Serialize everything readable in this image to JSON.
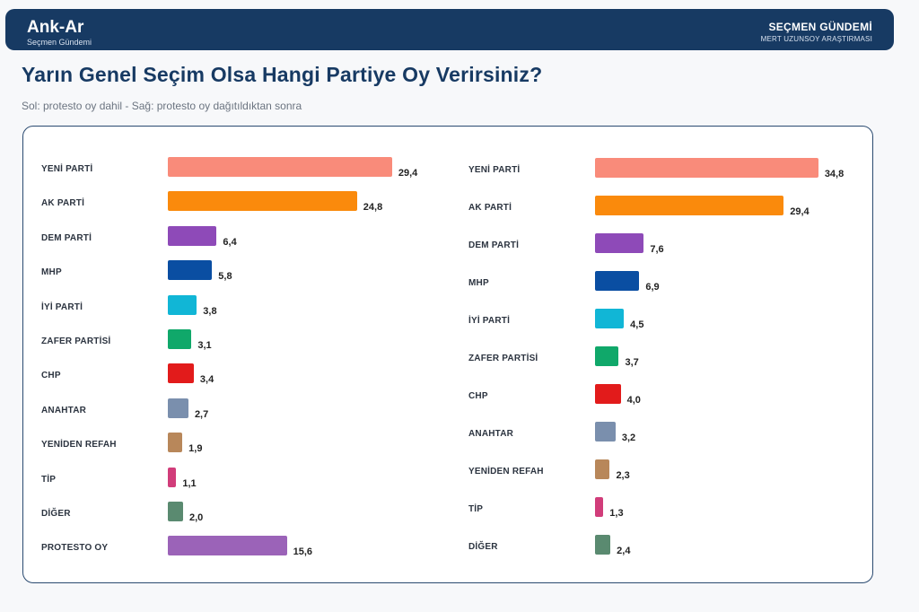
{
  "header": {
    "brand": "Ank-Ar",
    "brand_sub": "Seçmen Gündemi",
    "right_title": "SEÇMEN GÜNDEMİ",
    "right_sub": "MERT UZUNSOY ARAŞTIRMASI"
  },
  "page": {
    "title": "Yarın Genel Seçim Olsa Hangi Partiye Oy Verirsiniz?",
    "subtitle": "Sol: protesto oy dahil - Sağ: protesto oy dağıtıldıktan sonra"
  },
  "chart_data": [
    {
      "type": "bar",
      "orientation": "horizontal",
      "categories": [
        "YENİ PARTİ",
        "AK PARTİ",
        "DEM PARTİ",
        "MHP",
        "İYİ PARTİ",
        "ZAFER PARTİSİ",
        "CHP",
        "ANAHTAR",
        "YENİDEN REFAH",
        "TİP",
        "DİĞER",
        "PROTESTO OY"
      ],
      "values": [
        29.4,
        24.8,
        6.4,
        5.8,
        3.8,
        3.1,
        3.4,
        2.7,
        1.9,
        1.1,
        2.0,
        15.6
      ],
      "value_labels": [
        "29,4",
        "24,8",
        "6,4",
        "5,8",
        "3,8",
        "3,1",
        "3,4",
        "2,7",
        "1,9",
        "1,1",
        "2,0",
        "15,6"
      ],
      "colors": [
        "#f98b7a",
        "#fa8a0c",
        "#8e4ab8",
        "#0a4ea2",
        "#11b6d6",
        "#10a86a",
        "#e21b1b",
        "#7a8fad",
        "#b8875a",
        "#d13d7a",
        "#5a8a70",
        "#9b63b8"
      ]
    },
    {
      "type": "bar",
      "orientation": "horizontal",
      "categories": [
        "YENİ PARTİ",
        "AK PARTİ",
        "DEM PARTİ",
        "MHP",
        "İYİ PARTİ",
        "ZAFER PARTİSİ",
        "CHP",
        "ANAHTAR",
        "YENİDEN REFAH",
        "TİP",
        "DİĞER"
      ],
      "values": [
        34.8,
        29.4,
        7.6,
        6.9,
        4.5,
        3.7,
        4.0,
        3.2,
        2.3,
        1.3,
        2.4
      ],
      "value_labels": [
        "34,8",
        "29,4",
        "7,6",
        "6,9",
        "4,5",
        "3,7",
        "4,0",
        "3,2",
        "2,3",
        "1,3",
        "2,4"
      ],
      "colors": [
        "#f98b7a",
        "#fa8a0c",
        "#8e4ab8",
        "#0a4ea2",
        "#11b6d6",
        "#10a86a",
        "#e21b1b",
        "#7a8fad",
        "#b8875a",
        "#d13d7a",
        "#5a8a70"
      ]
    }
  ]
}
